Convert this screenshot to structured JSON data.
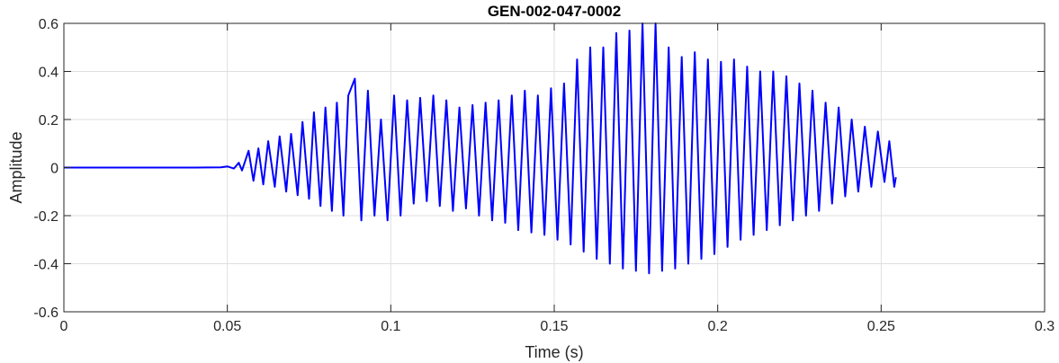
{
  "chart_data": {
    "type": "line",
    "title": "GEN-002-047-0002",
    "xlabel": "Time (s)",
    "ylabel": "Amplitude",
    "xlim": [
      0,
      0.3
    ],
    "ylim": [
      -0.6,
      0.6
    ],
    "xticks": [
      0,
      0.05,
      0.1,
      0.15,
      0.2,
      0.25,
      0.3
    ],
    "xtick_labels": [
      "0",
      "0.05",
      "0.1",
      "0.15",
      "0.2",
      "0.25",
      "0.3"
    ],
    "yticks": [
      -0.6,
      -0.4,
      -0.2,
      0,
      0.2,
      0.4,
      0.6
    ],
    "ytick_labels": [
      "-0.6",
      "-0.4",
      "-0.2",
      "0",
      "0.2",
      "0.4",
      "0.6"
    ],
    "grid": true,
    "series": [
      {
        "color": "#0000ff",
        "points": [
          [
            0,
            0
          ],
          [
            0.01,
            0
          ],
          [
            0.02,
            0
          ],
          [
            0.03,
            0
          ],
          [
            0.04,
            0
          ],
          [
            0.048,
            0.001
          ],
          [
            0.05,
            0.005
          ],
          [
            0.052,
            -0.004
          ],
          [
            0.0535,
            0.02
          ],
          [
            0.0545,
            -0.012
          ],
          [
            0.0565,
            0.07
          ],
          [
            0.058,
            -0.055
          ],
          [
            0.0595,
            0.08
          ],
          [
            0.061,
            -0.07
          ],
          [
            0.0625,
            0.11
          ],
          [
            0.0645,
            -0.08
          ],
          [
            0.066,
            0.13
          ],
          [
            0.068,
            -0.1
          ],
          [
            0.0695,
            0.14
          ],
          [
            0.0715,
            -0.115
          ],
          [
            0.073,
            0.19
          ],
          [
            0.075,
            -0.13
          ],
          [
            0.0765,
            0.23
          ],
          [
            0.0785,
            -0.16
          ],
          [
            0.08,
            0.25
          ],
          [
            0.082,
            -0.18
          ],
          [
            0.0835,
            0.27
          ],
          [
            0.0855,
            -0.2
          ],
          [
            0.087,
            0.3
          ],
          [
            0.089,
            0.37
          ],
          [
            0.091,
            -0.22
          ],
          [
            0.093,
            0.32
          ],
          [
            0.095,
            -0.2
          ],
          [
            0.097,
            0.2
          ],
          [
            0.099,
            -0.22
          ],
          [
            0.101,
            0.3
          ],
          [
            0.103,
            -0.2
          ],
          [
            0.105,
            0.28
          ],
          [
            0.107,
            -0.15
          ],
          [
            0.109,
            0.29
          ],
          [
            0.111,
            -0.14
          ],
          [
            0.113,
            0.3
          ],
          [
            0.115,
            -0.16
          ],
          [
            0.117,
            0.28
          ],
          [
            0.119,
            -0.18
          ],
          [
            0.121,
            0.25
          ],
          [
            0.123,
            -0.17
          ],
          [
            0.125,
            0.26
          ],
          [
            0.127,
            -0.2
          ],
          [
            0.129,
            0.27
          ],
          [
            0.131,
            -0.22
          ],
          [
            0.133,
            0.28
          ],
          [
            0.135,
            -0.23
          ],
          [
            0.137,
            0.3
          ],
          [
            0.139,
            -0.26
          ],
          [
            0.141,
            0.32
          ],
          [
            0.143,
            -0.27
          ],
          [
            0.145,
            0.3
          ],
          [
            0.147,
            -0.28
          ],
          [
            0.149,
            0.33
          ],
          [
            0.151,
            -0.3
          ],
          [
            0.153,
            0.35
          ],
          [
            0.155,
            -0.32
          ],
          [
            0.157,
            0.45
          ],
          [
            0.159,
            -0.35
          ],
          [
            0.161,
            0.5
          ],
          [
            0.163,
            -0.38
          ],
          [
            0.165,
            0.5
          ],
          [
            0.167,
            -0.4
          ],
          [
            0.169,
            0.56
          ],
          [
            0.171,
            -0.42
          ],
          [
            0.173,
            0.57
          ],
          [
            0.175,
            -0.43
          ],
          [
            0.177,
            0.6
          ],
          [
            0.179,
            -0.44
          ],
          [
            0.181,
            0.6
          ],
          [
            0.183,
            -0.43
          ],
          [
            0.185,
            0.5
          ],
          [
            0.187,
            -0.42
          ],
          [
            0.189,
            0.46
          ],
          [
            0.191,
            -0.4
          ],
          [
            0.193,
            0.48
          ],
          [
            0.195,
            -0.38
          ],
          [
            0.197,
            0.45
          ],
          [
            0.199,
            -0.36
          ],
          [
            0.201,
            0.44
          ],
          [
            0.203,
            -0.33
          ],
          [
            0.205,
            0.45
          ],
          [
            0.207,
            -0.3
          ],
          [
            0.209,
            0.42
          ],
          [
            0.211,
            -0.28
          ],
          [
            0.213,
            0.4
          ],
          [
            0.215,
            -0.26
          ],
          [
            0.217,
            0.4
          ],
          [
            0.219,
            -0.24
          ],
          [
            0.221,
            0.38
          ],
          [
            0.223,
            -0.22
          ],
          [
            0.225,
            0.35
          ],
          [
            0.227,
            -0.2
          ],
          [
            0.229,
            0.32
          ],
          [
            0.231,
            -0.18
          ],
          [
            0.233,
            0.27
          ],
          [
            0.235,
            -0.15
          ],
          [
            0.237,
            0.25
          ],
          [
            0.239,
            -0.12
          ],
          [
            0.241,
            0.2
          ],
          [
            0.243,
            -0.1
          ],
          [
            0.245,
            0.17
          ],
          [
            0.247,
            -0.08
          ],
          [
            0.249,
            0.15
          ],
          [
            0.251,
            -0.06
          ],
          [
            0.2525,
            0.11
          ],
          [
            0.254,
            -0.08
          ],
          [
            0.2545,
            -0.04
          ]
        ]
      }
    ]
  }
}
